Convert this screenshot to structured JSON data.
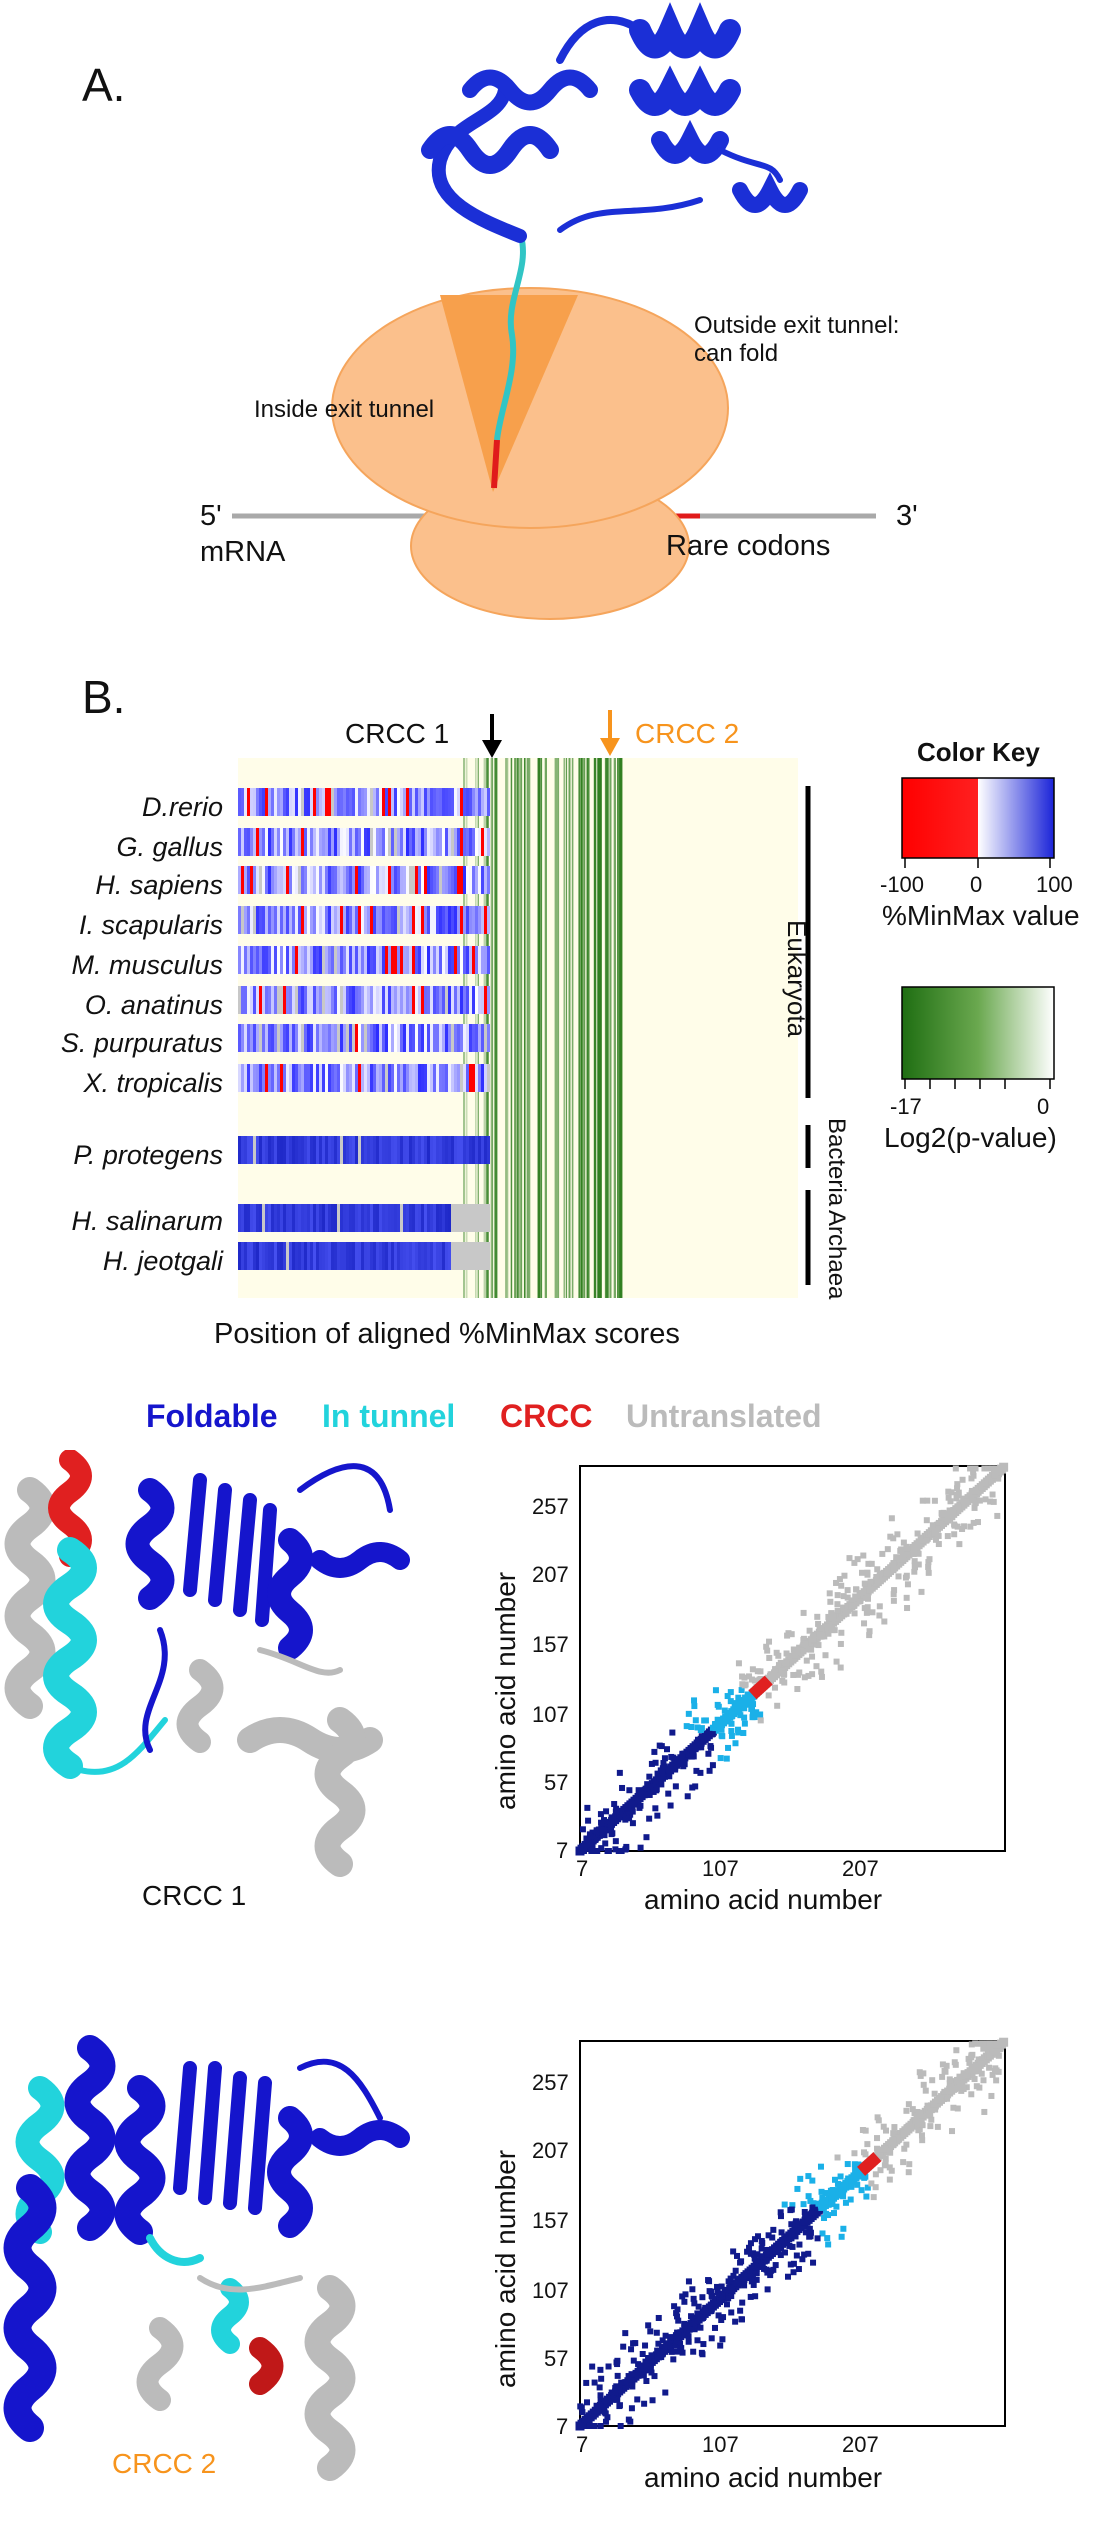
{
  "panel_a": {
    "label": "A.",
    "inside_tunnel": "Inside exit tunnel",
    "outside_tunnel_line1": "Outside exit tunnel:",
    "outside_tunnel_line2": "can fold",
    "five_prime": "5'",
    "three_prime": "3'",
    "mrna": "mRNA",
    "rare_codons": "Rare codons",
    "colors": {
      "protein": "#1b2fd6",
      "ribosome": "#fbc08c",
      "tunnel": "#f7a04c",
      "nascent": "#31c5c5",
      "rare": "#e01b1b"
    }
  },
  "panel_b": {
    "label": "B.",
    "crcc1": "CRCC 1",
    "crcc2": "CRCC 2",
    "species": [
      "D.rerio",
      "G. gallus",
      "H. sapiens",
      "I. scapularis",
      "M. musculus",
      "O. anatinus",
      "S. purpuratus",
      "X. tropicalis",
      "P. protegens",
      "H. salinarum",
      "H. jeotgali"
    ],
    "domains": [
      "Eukaryota",
      "Bacteria",
      "Archaea"
    ],
    "xlabel": "Position of aligned %MinMax scores",
    "color_key_title": "Color Key",
    "color_key_ticks": [
      "-100",
      "0",
      "100"
    ],
    "color_key_label": "%MinMax value",
    "pvalue_ticks": [
      "-17",
      "0"
    ],
    "pvalue_label": "Log2(p-value)",
    "colors": {
      "negative": "#ff0000",
      "positive": "#1b24d8",
      "missing": "#c8c8c8",
      "significant": "#2e7d1e"
    }
  },
  "panel_c": {
    "legend": {
      "foldable": "Foldable",
      "in_tunnel": "In tunnel",
      "crcc": "CRCC",
      "untranslated": "Untranslated"
    },
    "colors": {
      "foldable": "#1515cc",
      "in_tunnel": "#22d3dc",
      "crcc": "#e02020",
      "untranslated": "#bbbbbb",
      "contact_fold": "#101a8c",
      "contact_tunnel": "#1ab0e8"
    },
    "structure1_label": "CRCC 1",
    "structure2_label": "CRCC 2",
    "xlabel": "amino acid number",
    "ylabel": "amino acid number",
    "x_ticks": [
      "7",
      "107",
      "207"
    ],
    "y_ticks": [
      "7",
      "57",
      "107",
      "157",
      "207",
      "257"
    ]
  }
}
